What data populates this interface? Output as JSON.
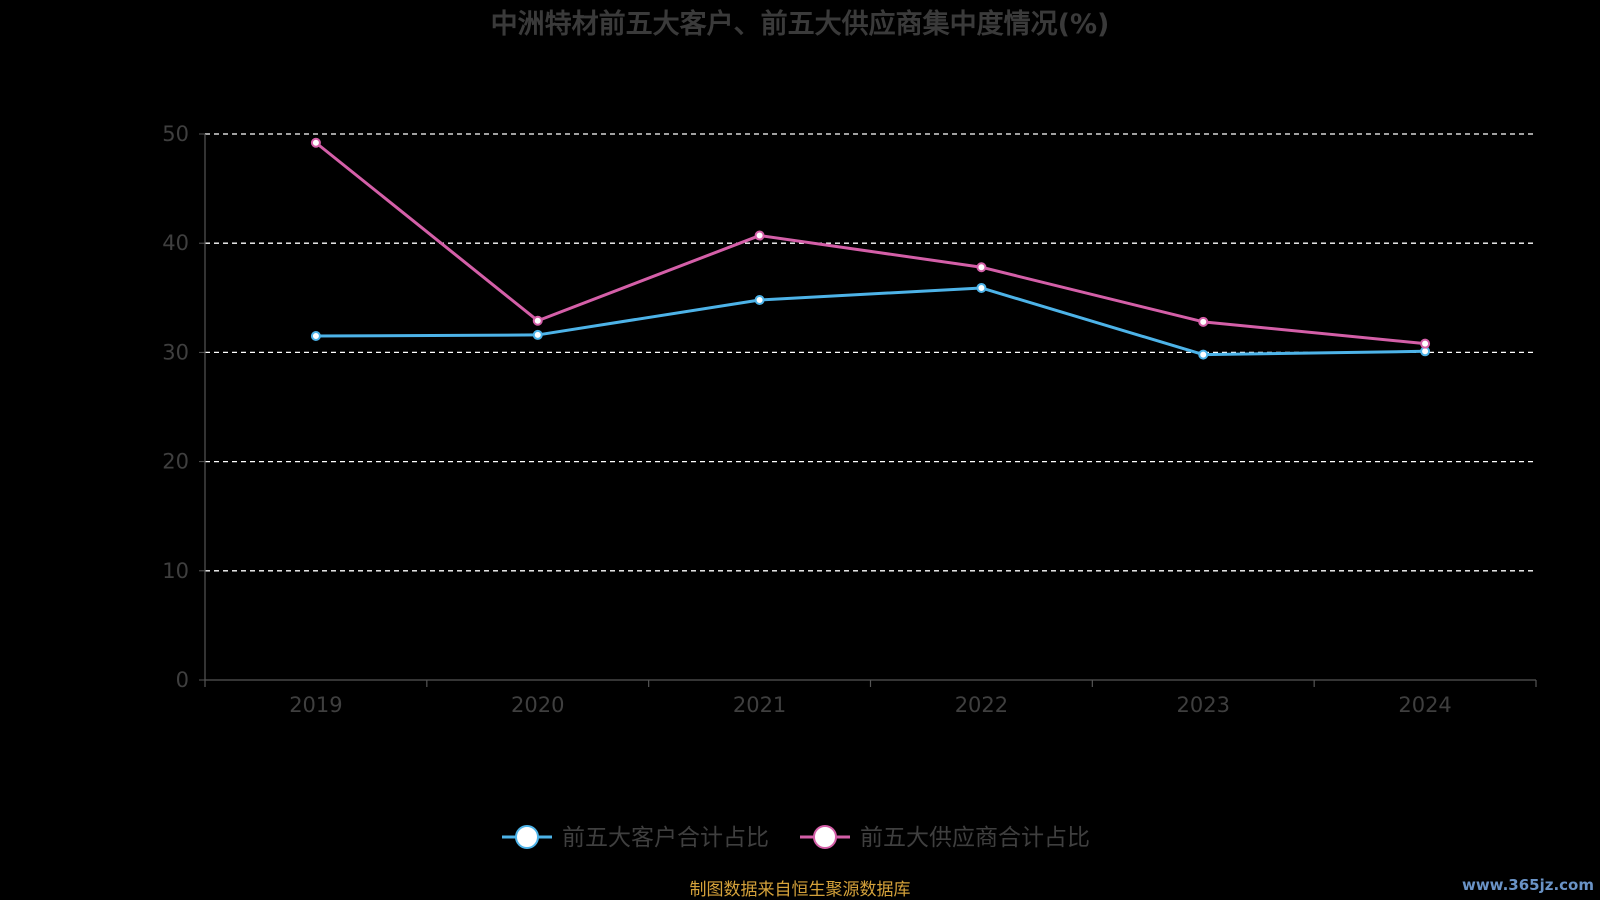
{
  "chart_data": {
    "type": "line",
    "title": "中洲特材前五大客户、前五大供应商集中度情况(%)",
    "categories": [
      "2019",
      "2020",
      "2021",
      "2022",
      "2023",
      "2024"
    ],
    "series": [
      {
        "name": "前五大客户合计占比",
        "color": "#4db3e8",
        "values": [
          31.5,
          31.6,
          34.8,
          35.9,
          29.8,
          30.1
        ]
      },
      {
        "name": "前五大供应商合计占比",
        "color": "#d45fa8",
        "values": [
          49.2,
          32.9,
          40.7,
          37.8,
          32.8,
          30.8
        ]
      }
    ],
    "ylim": [
      0,
      50
    ],
    "yticks": [
      0,
      10,
      20,
      30,
      40,
      50
    ],
    "grid": true,
    "legend_position": "bottom-center",
    "colors": {
      "background": "#000000",
      "grid": "#ffffff",
      "axis": "#555555",
      "marker_fill": "#ffffff"
    }
  },
  "footer": {
    "source": "制图数据来自恒生聚源数据库",
    "watermark": "www.365jz.com"
  }
}
